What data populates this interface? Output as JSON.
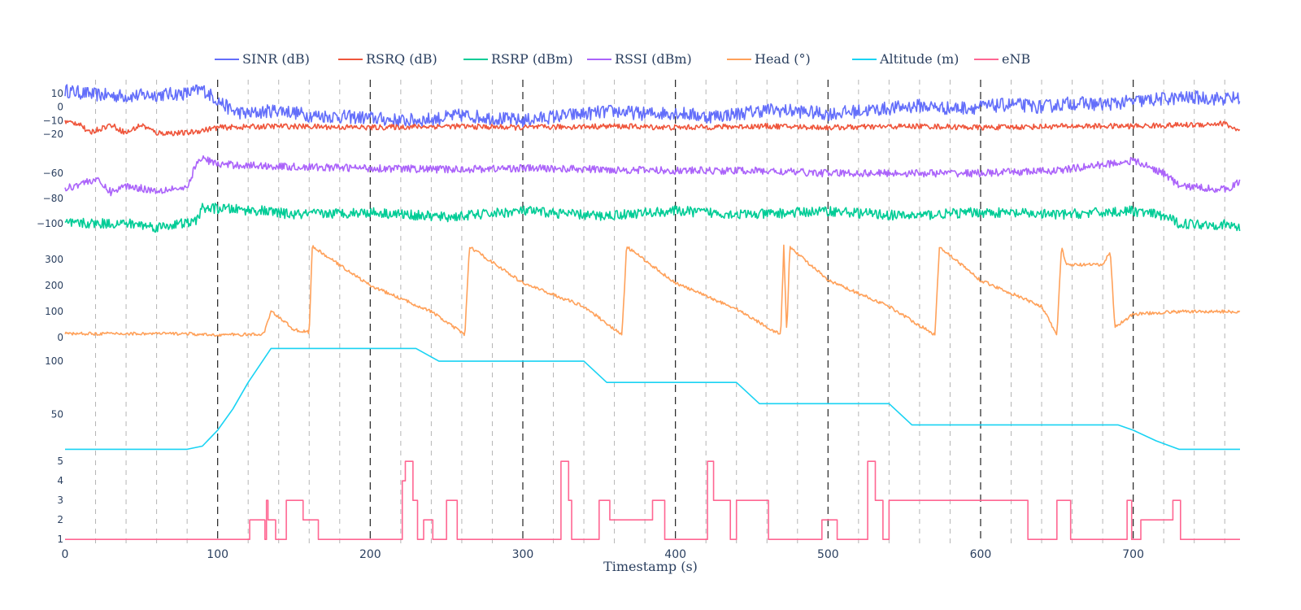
{
  "chart_data": {
    "type": "line",
    "xlabel": "Timestamp (s)",
    "xlim": [
      0,
      770
    ],
    "x_ticks": [
      0,
      100,
      200,
      300,
      400,
      500,
      600,
      700
    ],
    "grid": {
      "major_dash_every": 100,
      "minor_dash_every": 20
    },
    "legend": {
      "placement": "top"
    },
    "series": [
      {
        "name": "SINR (dB)",
        "color": "#636efa",
        "panel": 0,
        "ylim": [
          -30,
          20
        ],
        "points": [
          [
            0,
            12
          ],
          [
            20,
            9
          ],
          [
            40,
            8
          ],
          [
            60,
            9
          ],
          [
            80,
            10
          ],
          [
            90,
            13
          ],
          [
            100,
            5
          ],
          [
            110,
            -3
          ],
          [
            120,
            -5
          ],
          [
            140,
            -2
          ],
          [
            160,
            -6
          ],
          [
            180,
            -7
          ],
          [
            200,
            -8
          ],
          [
            220,
            -10
          ],
          [
            240,
            -9
          ],
          [
            260,
            -6
          ],
          [
            280,
            -8
          ],
          [
            300,
            -10
          ],
          [
            320,
            -7
          ],
          [
            340,
            -5
          ],
          [
            360,
            -3
          ],
          [
            380,
            -5
          ],
          [
            400,
            -4
          ],
          [
            420,
            -7
          ],
          [
            440,
            -5
          ],
          [
            460,
            -2
          ],
          [
            480,
            -3
          ],
          [
            500,
            -5
          ],
          [
            520,
            -3
          ],
          [
            540,
            -1
          ],
          [
            560,
            1
          ],
          [
            580,
            -1
          ],
          [
            600,
            0
          ],
          [
            620,
            2
          ],
          [
            640,
            0
          ],
          [
            660,
            3
          ],
          [
            680,
            2
          ],
          [
            700,
            4
          ],
          [
            720,
            6
          ],
          [
            740,
            7
          ],
          [
            760,
            6
          ],
          [
            770,
            7
          ]
        ],
        "noise": 5
      },
      {
        "name": "RSRQ (dB)",
        "color": "#ef553b",
        "panel": 0,
        "ylim": [
          -30,
          20
        ],
        "points": [
          [
            0,
            -11
          ],
          [
            10,
            -12
          ],
          [
            15,
            -19
          ],
          [
            30,
            -13
          ],
          [
            40,
            -19
          ],
          [
            50,
            -13
          ],
          [
            60,
            -19
          ],
          [
            80,
            -19
          ],
          [
            100,
            -15
          ],
          [
            140,
            -14
          ],
          [
            200,
            -15
          ],
          [
            250,
            -14
          ],
          [
            300,
            -15
          ],
          [
            360,
            -14
          ],
          [
            400,
            -15
          ],
          [
            460,
            -14
          ],
          [
            500,
            -15
          ],
          [
            560,
            -14
          ],
          [
            600,
            -15
          ],
          [
            660,
            -14
          ],
          [
            700,
            -14
          ],
          [
            740,
            -13
          ],
          [
            760,
            -12
          ],
          [
            770,
            -18
          ]
        ],
        "noise": 2
      },
      {
        "name": "RSRP (dBm)",
        "color": "#00cc96",
        "panel": 1,
        "ylim": [
          -115,
          -40
        ],
        "points": [
          [
            0,
            -100
          ],
          [
            40,
            -100
          ],
          [
            50,
            -101
          ],
          [
            60,
            -103
          ],
          [
            70,
            -101
          ],
          [
            85,
            -99
          ],
          [
            90,
            -88
          ],
          [
            100,
            -88
          ],
          [
            130,
            -90
          ],
          [
            150,
            -93
          ],
          [
            200,
            -91
          ],
          [
            250,
            -95
          ],
          [
            300,
            -90
          ],
          [
            350,
            -94
          ],
          [
            400,
            -90
          ],
          [
            450,
            -93
          ],
          [
            500,
            -90
          ],
          [
            550,
            -94
          ],
          [
            600,
            -91
          ],
          [
            650,
            -93
          ],
          [
            700,
            -90
          ],
          [
            720,
            -94
          ],
          [
            730,
            -100
          ],
          [
            760,
            -101
          ],
          [
            770,
            -103
          ]
        ],
        "noise": 4
      },
      {
        "name": "RSSI (dBm)",
        "color": "#ab63fa",
        "panel": 1,
        "ylim": [
          -115,
          -40
        ],
        "points": [
          [
            0,
            -73
          ],
          [
            10,
            -68
          ],
          [
            20,
            -65
          ],
          [
            30,
            -75
          ],
          [
            40,
            -70
          ],
          [
            50,
            -72
          ],
          [
            60,
            -74
          ],
          [
            70,
            -72
          ],
          [
            80,
            -73
          ],
          [
            85,
            -55
          ],
          [
            90,
            -48
          ],
          [
            100,
            -53
          ],
          [
            150,
            -55
          ],
          [
            200,
            -56
          ],
          [
            250,
            -57
          ],
          [
            300,
            -56
          ],
          [
            350,
            -57
          ],
          [
            400,
            -58
          ],
          [
            450,
            -58
          ],
          [
            500,
            -60
          ],
          [
            550,
            -60
          ],
          [
            600,
            -60
          ],
          [
            650,
            -58
          ],
          [
            700,
            -50
          ],
          [
            720,
            -60
          ],
          [
            730,
            -70
          ],
          [
            760,
            -73
          ],
          [
            770,
            -67
          ]
        ],
        "noise": 3
      },
      {
        "name": "Head (°)",
        "color": "#ffa15a",
        "panel": 2,
        "ylim": [
          0,
          360
        ],
        "points": [
          [
            0,
            15
          ],
          [
            80,
            15
          ],
          [
            90,
            10
          ],
          [
            130,
            12
          ],
          [
            135,
            100
          ],
          [
            140,
            80
          ],
          [
            150,
            30
          ],
          [
            160,
            20
          ],
          [
            162,
            350
          ],
          [
            200,
            200
          ],
          [
            240,
            100
          ],
          [
            262,
            10
          ],
          [
            265,
            350
          ],
          [
            300,
            210
          ],
          [
            340,
            120
          ],
          [
            365,
            10
          ],
          [
            368,
            350
          ],
          [
            400,
            210
          ],
          [
            440,
            110
          ],
          [
            469,
            10
          ],
          [
            471,
            350
          ],
          [
            473,
            10
          ],
          [
            475,
            350
          ],
          [
            500,
            220
          ],
          [
            540,
            120
          ],
          [
            570,
            10
          ],
          [
            573,
            350
          ],
          [
            600,
            220
          ],
          [
            640,
            120
          ],
          [
            650,
            10
          ],
          [
            653,
            350
          ],
          [
            656,
            280
          ],
          [
            680,
            280
          ],
          [
            685,
            330
          ],
          [
            688,
            40
          ],
          [
            700,
            90
          ],
          [
            730,
            100
          ],
          [
            770,
            100
          ]
        ],
        "noise": 6
      },
      {
        "name": "Altitude (m)",
        "color": "#19d3f3",
        "panel": 3,
        "ylim": [
          15,
          120
        ],
        "points": [
          [
            0,
            17
          ],
          [
            80,
            17
          ],
          [
            90,
            20
          ],
          [
            100,
            35
          ],
          [
            110,
            55
          ],
          [
            120,
            80
          ],
          [
            135,
            112
          ],
          [
            230,
            112
          ],
          [
            245,
            100
          ],
          [
            340,
            100
          ],
          [
            355,
            80
          ],
          [
            440,
            80
          ],
          [
            455,
            60
          ],
          [
            540,
            60
          ],
          [
            555,
            40
          ],
          [
            690,
            40
          ],
          [
            700,
            35
          ],
          [
            715,
            25
          ],
          [
            730,
            17
          ],
          [
            770,
            17
          ]
        ],
        "noise": 0
      },
      {
        "name": "eNB",
        "color": "#ff6692",
        "panel": 4,
        "ylim": [
          0.8,
          5.3
        ],
        "step": true,
        "points": [
          [
            0,
            1
          ],
          [
            120,
            1
          ],
          [
            121,
            2
          ],
          [
            130,
            2
          ],
          [
            131,
            1
          ],
          [
            132,
            3
          ],
          [
            133,
            2
          ],
          [
            137,
            2
          ],
          [
            138,
            1
          ],
          [
            145,
            3
          ],
          [
            155,
            3
          ],
          [
            156,
            2
          ],
          [
            165,
            2
          ],
          [
            166,
            1
          ],
          [
            220,
            1
          ],
          [
            221,
            4
          ],
          [
            223,
            5
          ],
          [
            227,
            5
          ],
          [
            228,
            3
          ],
          [
            230,
            3
          ],
          [
            231,
            1
          ],
          [
            235,
            2
          ],
          [
            240,
            2
          ],
          [
            241,
            1
          ],
          [
            250,
            3
          ],
          [
            256,
            3
          ],
          [
            257,
            1
          ],
          [
            324,
            1
          ],
          [
            325,
            5
          ],
          [
            329,
            5
          ],
          [
            330,
            3
          ],
          [
            332,
            1
          ],
          [
            350,
            3
          ],
          [
            356,
            3
          ],
          [
            357,
            2
          ],
          [
            380,
            2
          ],
          [
            385,
            3
          ],
          [
            392,
            3
          ],
          [
            393,
            1
          ],
          [
            420,
            1
          ],
          [
            421,
            5
          ],
          [
            424,
            5
          ],
          [
            425,
            3
          ],
          [
            435,
            3
          ],
          [
            436,
            1
          ],
          [
            440,
            3
          ],
          [
            460,
            3
          ],
          [
            461,
            1
          ],
          [
            495,
            1
          ],
          [
            496,
            2
          ],
          [
            505,
            2
          ],
          [
            506,
            1
          ],
          [
            525,
            1
          ],
          [
            526,
            5
          ],
          [
            530,
            5
          ],
          [
            531,
            3
          ],
          [
            535,
            3
          ],
          [
            536,
            1
          ],
          [
            540,
            3
          ],
          [
            630,
            3
          ],
          [
            631,
            1
          ],
          [
            650,
            3
          ],
          [
            658,
            3
          ],
          [
            659,
            1
          ],
          [
            695,
            1
          ],
          [
            696,
            3
          ],
          [
            698,
            3
          ],
          [
            699,
            1
          ],
          [
            705,
            2
          ],
          [
            725,
            2
          ],
          [
            726,
            3
          ],
          [
            730,
            3
          ],
          [
            731,
            1
          ],
          [
            770,
            1
          ]
        ],
        "noise": 0
      }
    ],
    "y_ticks": [
      {
        "panel": 0,
        "values": [
          10,
          0,
          -10,
          -20
        ]
      },
      {
        "panel": 1,
        "values": [
          -60,
          -80,
          -100
        ]
      },
      {
        "panel": 2,
        "values": [
          300,
          200,
          100,
          0
        ]
      },
      {
        "panel": 3,
        "values": [
          100,
          50
        ]
      },
      {
        "panel": 4,
        "values": [
          5,
          4,
          3,
          2,
          1
        ]
      }
    ]
  }
}
